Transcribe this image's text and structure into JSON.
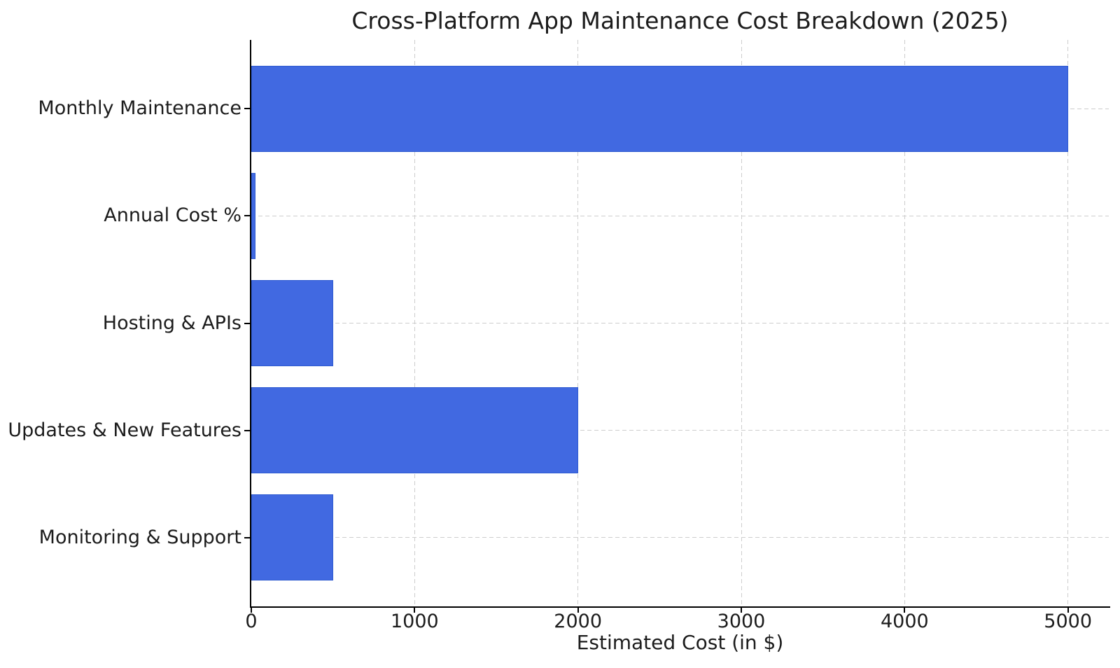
{
  "chart_data": {
    "type": "bar",
    "orientation": "horizontal",
    "title": "Cross-Platform App Maintenance Cost Breakdown (2025)",
    "xlabel": "Estimated Cost (in $)",
    "ylabel": "",
    "categories": [
      "Monthly Maintenance",
      "Annual Cost %",
      "Hosting & APIs",
      "Updates & New Features",
      "Monitoring & Support"
    ],
    "values": [
      5000,
      25,
      500,
      2000,
      500
    ],
    "xticks": [
      0,
      1000,
      2000,
      3000,
      4000,
      5000
    ],
    "xtick_labels": [
      "0",
      "1000",
      "2000",
      "3000",
      "4000",
      "5000"
    ],
    "xlim": [
      0,
      5250
    ],
    "grid": "dashed, both vertical (at x ticks) and horizontal (at category centers)",
    "legend": "none",
    "bar_color": "#4169E1",
    "bar_edge_color": "#2f5bd0",
    "grid_color": "#cdcdcd",
    "axis_color": "#000000",
    "text_color": "#1c1c1c",
    "background_color": "#ffffff"
  }
}
